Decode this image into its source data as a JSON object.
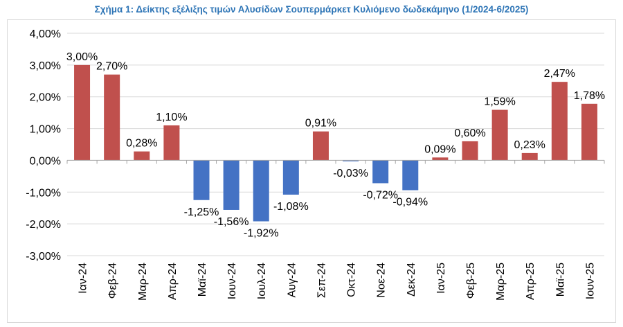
{
  "chart_data": {
    "type": "bar",
    "title": "Σχήμα 1: Δείκτης εξέλιξης τιμών Αλυσίδων Σουπερμάρκετ Κυλιόμενο δωδεκάμηνο (1/2024-6/2025)",
    "xlabel": "",
    "ylabel": "",
    "categories": [
      "Ιαν-24",
      "Φεβ-24",
      "Μαρ-24",
      "Απρ-24",
      "Μαϊ-24",
      "Ιουν-24",
      "Ιουλ-24",
      "Αυγ-24",
      "Σεπ-24",
      "Οκτ-24",
      "Νοε-24",
      "Δεκ-24",
      "Ιαν-25",
      "Φεβ-25",
      "Μαρ-25",
      "Απρ-25",
      "Μαϊ-25",
      "Ιουν-25"
    ],
    "values": [
      3.0,
      2.7,
      0.28,
      1.1,
      -1.25,
      -1.56,
      -1.92,
      -1.08,
      0.91,
      -0.03,
      -0.72,
      -0.94,
      0.09,
      0.6,
      1.59,
      0.23,
      2.47,
      1.78
    ],
    "value_labels": [
      "3,00%",
      "2,70%",
      "0,28%",
      "1,10%",
      "-1,25%",
      "-1,56%",
      "-1,92%",
      "-1,08%",
      "0,91%",
      "-0,03%",
      "-0,72%",
      "-0,94%",
      "0,09%",
      "0,60%",
      "1,59%",
      "0,23%",
      "2,47%",
      "1,78%"
    ],
    "ylim": [
      -3,
      4
    ],
    "yticks": [
      4,
      3,
      2,
      1,
      0,
      -1,
      -2,
      -3
    ],
    "ytick_labels": [
      "4,00%",
      "3,00%",
      "2,00%",
      "1,00%",
      "0,00%",
      "-1,00%",
      "-2,00%",
      "-3,00%"
    ],
    "grid": true,
    "legend": "none",
    "colors": {
      "positive": "#c0504d",
      "negative": "#4472c4",
      "title": "#2e75b6",
      "grid": "#d9d9d9",
      "axis": "#a6a6a6",
      "text": "#000000"
    }
  }
}
